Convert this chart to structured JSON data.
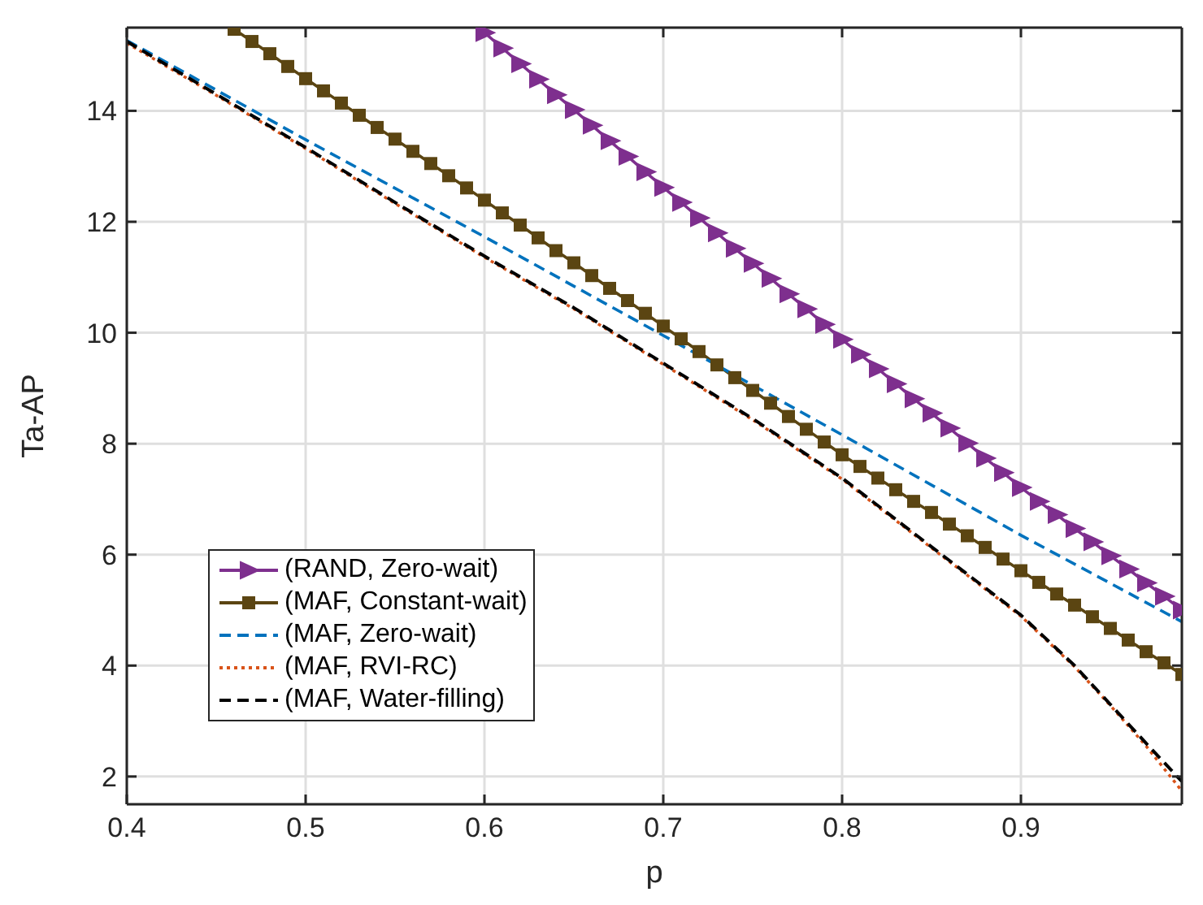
{
  "chart_data": {
    "type": "line",
    "xlabel": "p",
    "ylabel": "Ta-AP",
    "xlim": [
      0.4,
      0.99
    ],
    "xticks": [
      0.4,
      0.5,
      0.6,
      0.7,
      0.8,
      0.9
    ],
    "ylim": [
      1.5,
      15.5
    ],
    "yticks": [
      2,
      4,
      6,
      8,
      10,
      12,
      14
    ],
    "grid": true,
    "legend": "bottom left",
    "series": [
      {
        "name": "(RAND, Zero-wait)",
        "color": "#7e2f8e",
        "marker": "triangle",
        "line_style": "solid",
        "x": [
          0.6,
          0.61,
          0.62,
          0.63,
          0.64,
          0.65,
          0.66,
          0.67,
          0.68,
          0.69,
          0.7,
          0.71,
          0.72,
          0.73,
          0.74,
          0.75,
          0.76,
          0.77,
          0.78,
          0.79,
          0.8,
          0.81,
          0.82,
          0.83,
          0.84,
          0.85,
          0.86,
          0.87,
          0.88,
          0.89,
          0.9,
          0.91,
          0.92,
          0.93,
          0.94,
          0.95,
          0.96,
          0.97,
          0.98,
          0.99
        ],
        "values": [
          15.41,
          15.13,
          14.85,
          14.57,
          14.29,
          14.02,
          13.74,
          13.46,
          13.18,
          12.9,
          12.62,
          12.35,
          12.07,
          11.8,
          11.52,
          11.25,
          10.98,
          10.7,
          10.43,
          10.15,
          9.88,
          9.61,
          9.35,
          9.08,
          8.81,
          8.55,
          8.28,
          8.01,
          7.74,
          7.48,
          7.21,
          6.96,
          6.72,
          6.47,
          6.23,
          5.98,
          5.74,
          5.49,
          5.25,
          5.0
        ]
      },
      {
        "name": "(MAF, Constant-wait)",
        "color": "#5b4512",
        "marker": "square",
        "line_style": "solid",
        "x": [
          0.46,
          0.47,
          0.48,
          0.49,
          0.5,
          0.51,
          0.52,
          0.53,
          0.54,
          0.55,
          0.56,
          0.57,
          0.58,
          0.59,
          0.6,
          0.61,
          0.62,
          0.63,
          0.64,
          0.65,
          0.66,
          0.67,
          0.68,
          0.69,
          0.7,
          0.71,
          0.72,
          0.73,
          0.74,
          0.75,
          0.76,
          0.77,
          0.78,
          0.79,
          0.8,
          0.81,
          0.82,
          0.83,
          0.84,
          0.85,
          0.86,
          0.87,
          0.88,
          0.89,
          0.9,
          0.91,
          0.92,
          0.93,
          0.94,
          0.95,
          0.96,
          0.97,
          0.98,
          0.99
        ],
        "values": [
          15.47,
          15.25,
          15.03,
          14.8,
          14.58,
          14.36,
          14.14,
          13.92,
          13.7,
          13.49,
          13.27,
          13.05,
          12.83,
          12.61,
          12.39,
          12.16,
          11.94,
          11.71,
          11.48,
          11.26,
          11.03,
          10.8,
          10.58,
          10.35,
          10.12,
          9.89,
          9.66,
          9.42,
          9.19,
          8.96,
          8.73,
          8.49,
          8.26,
          8.03,
          7.8,
          7.59,
          7.38,
          7.17,
          6.96,
          6.76,
          6.55,
          6.34,
          6.13,
          5.92,
          5.71,
          5.5,
          5.29,
          5.09,
          4.88,
          4.67,
          4.46,
          4.25,
          4.05,
          3.84
        ]
      },
      {
        "name": "(MAF, Zero-wait)",
        "color": "#0072bd",
        "marker": "none",
        "line_style": "dashed",
        "x": [
          0.4,
          0.5,
          0.6,
          0.7,
          0.8,
          0.9,
          0.99
        ],
        "values": [
          15.27,
          13.48,
          11.73,
          9.95,
          8.16,
          6.35,
          4.79
        ]
      },
      {
        "name": "(MAF, RVI-RC)",
        "color": "#d95319",
        "marker": "none",
        "line_style": "dotted",
        "x": [
          0.4,
          0.45,
          0.5,
          0.55,
          0.6,
          0.65,
          0.7,
          0.75,
          0.8,
          0.85,
          0.9,
          0.93,
          0.95,
          0.97,
          0.99
        ],
        "values": [
          15.22,
          14.28,
          13.32,
          12.33,
          11.36,
          10.43,
          9.43,
          8.43,
          7.36,
          6.12,
          4.89,
          3.98,
          3.28,
          2.55,
          1.74
        ]
      },
      {
        "name": "(MAF, Water-filling)",
        "color": "#000000",
        "marker": "none",
        "line_style": "dashed",
        "x": [
          0.4,
          0.45,
          0.5,
          0.55,
          0.6,
          0.65,
          0.7,
          0.75,
          0.8,
          0.85,
          0.9,
          0.93,
          0.95,
          0.97,
          0.99
        ],
        "values": [
          15.25,
          14.3,
          13.34,
          12.35,
          11.38,
          10.45,
          9.45,
          8.45,
          7.38,
          6.14,
          4.91,
          4.0,
          3.3,
          2.6,
          1.91
        ]
      }
    ]
  }
}
